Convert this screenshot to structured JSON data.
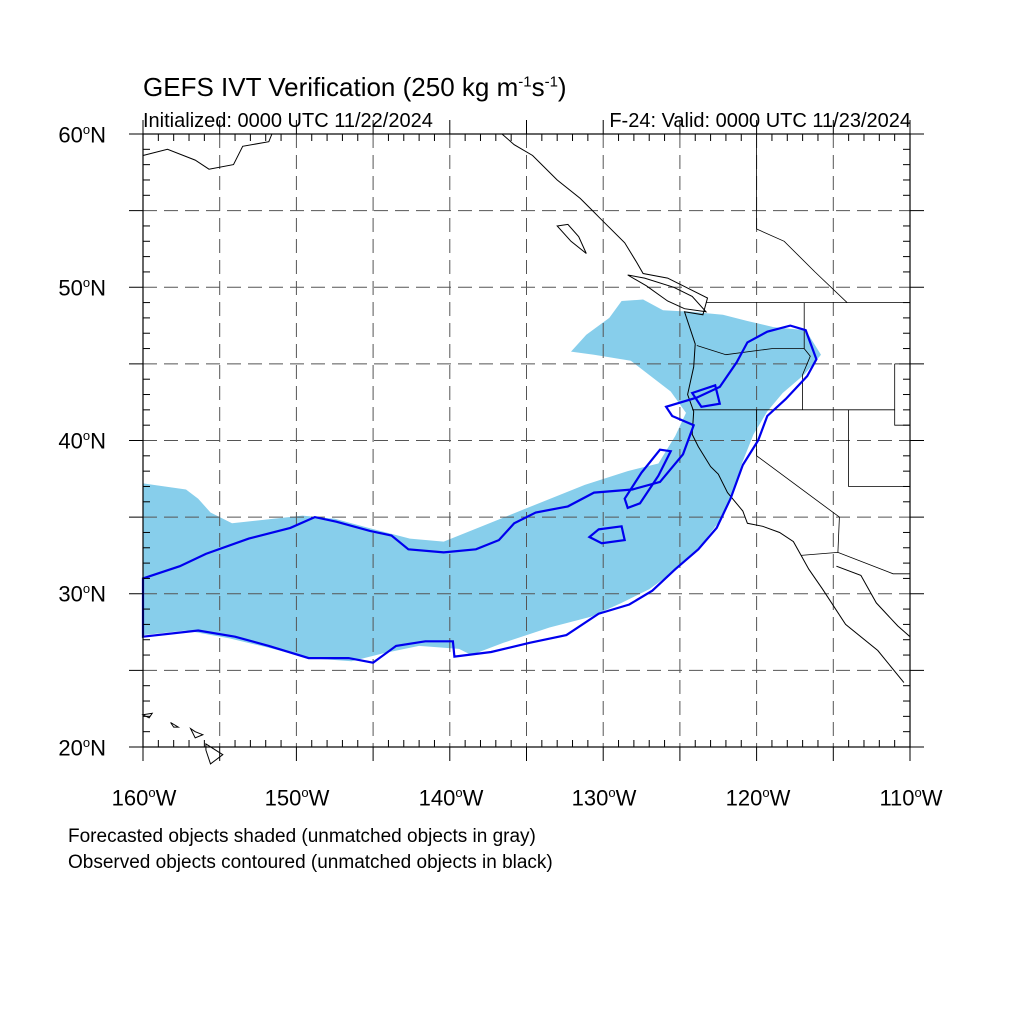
{
  "title": {
    "text": "GEFS IVT Verification (250 kg m",
    "exp1": "-1",
    "mid": "s",
    "exp2": "-1",
    "end": ")"
  },
  "subtitle": {
    "initialized": "Initialized: 0000 UTC 11/22/2024",
    "valid": "F-24: Valid: 0000 UTC 11/23/2024"
  },
  "latitude_labels": [
    {
      "deg": "60",
      "suffix": "N"
    },
    {
      "deg": "50",
      "suffix": "N"
    },
    {
      "deg": "40",
      "suffix": "N"
    },
    {
      "deg": "30",
      "suffix": "N"
    },
    {
      "deg": "20",
      "suffix": "N"
    }
  ],
  "longitude_labels": [
    {
      "deg": "160",
      "suffix": "W"
    },
    {
      "deg": "150",
      "suffix": "W"
    },
    {
      "deg": "140",
      "suffix": "W"
    },
    {
      "deg": "130",
      "suffix": "W"
    },
    {
      "deg": "120",
      "suffix": "W"
    },
    {
      "deg": "110",
      "suffix": "W"
    }
  ],
  "notes": {
    "forecast": "Forecasted objects shaded (unmatched objects in gray)",
    "observed": "Observed objects contoured (unmatched objects in black)"
  },
  "map": {
    "lon_range": [
      -160,
      -110
    ],
    "lat_range": [
      20,
      60
    ],
    "grid_lons": [
      -155,
      -150,
      -145,
      -140,
      -135,
      -130,
      -125,
      -120,
      -115
    ],
    "grid_lats": [
      25,
      30,
      35,
      40,
      45,
      50,
      55
    ],
    "forecast_fill_color": "#87ceeb",
    "observed_contour_color": "#0000ee",
    "coastline_color": "#000000"
  },
  "forecast_object": [
    [
      -160,
      37.2
    ],
    [
      -157.2,
      36.8
    ],
    [
      -156.4,
      36.2
    ],
    [
      -155.6,
      35.3
    ],
    [
      -154.2,
      34.6
    ],
    [
      -149.6,
      35.1
    ],
    [
      -147.5,
      34.9
    ],
    [
      -145.3,
      34.3
    ],
    [
      -142.6,
      33.6
    ],
    [
      -140.4,
      33.4
    ],
    [
      -137.9,
      34.4
    ],
    [
      -135.2,
      35.5
    ],
    [
      -131.2,
      37.1
    ],
    [
      -128.4,
      38.0
    ],
    [
      -126.4,
      38.5
    ],
    [
      -125.3,
      40.3
    ],
    [
      -124.6,
      41.8
    ],
    [
      -125.6,
      43.2
    ],
    [
      -128.2,
      45.2
    ],
    [
      -130.6,
      45.6
    ],
    [
      -132.1,
      45.8
    ],
    [
      -131.1,
      46.9
    ],
    [
      -129.6,
      48.0
    ],
    [
      -128.8,
      49.1
    ],
    [
      -127.4,
      49.2
    ],
    [
      -126.1,
      48.5
    ],
    [
      -124.3,
      48.4
    ],
    [
      -122.2,
      48.2
    ],
    [
      -120.6,
      47.8
    ],
    [
      -118.9,
      47.4
    ],
    [
      -116.8,
      47.2
    ],
    [
      -115.8,
      45.6
    ],
    [
      -116.9,
      44.3
    ],
    [
      -118.3,
      43.1
    ],
    [
      -119.3,
      41.9
    ],
    [
      -120.2,
      40.4
    ],
    [
      -121.0,
      38.4
    ],
    [
      -121.6,
      36.3
    ],
    [
      -122.3,
      34.9
    ],
    [
      -123.6,
      33.2
    ],
    [
      -125.2,
      31.6
    ],
    [
      -127.0,
      30.3
    ],
    [
      -128.8,
      29.4
    ],
    [
      -130.8,
      28.5
    ],
    [
      -133.5,
      27.8
    ],
    [
      -136.5,
      26.8
    ],
    [
      -138.6,
      26.0
    ],
    [
      -139.4,
      26.4
    ],
    [
      -142.0,
      26.6
    ],
    [
      -144.4,
      26.1
    ],
    [
      -146.4,
      25.6
    ],
    [
      -149.2,
      25.8
    ],
    [
      -151.9,
      26.5
    ],
    [
      -154.4,
      27.1
    ],
    [
      -157.2,
      27.6
    ],
    [
      -160,
      27.3
    ]
  ],
  "observed_object": [
    [
      -160,
      31.0
    ],
    [
      -157.6,
      31.8
    ],
    [
      -155.9,
      32.6
    ],
    [
      -153.1,
      33.6
    ],
    [
      -150.4,
      34.3
    ],
    [
      -148.8,
      35.0
    ],
    [
      -147.4,
      34.7
    ],
    [
      -145.2,
      34.1
    ],
    [
      -143.8,
      33.8
    ],
    [
      -142.7,
      32.9
    ],
    [
      -140.4,
      32.7
    ],
    [
      -138.3,
      32.9
    ],
    [
      -136.8,
      33.5
    ],
    [
      -135.8,
      34.6
    ],
    [
      -134.4,
      35.3
    ],
    [
      -132.3,
      35.7
    ],
    [
      -130.6,
      36.6
    ],
    [
      -128.1,
      36.8
    ],
    [
      -126.3,
      37.3
    ],
    [
      -124.8,
      39.1
    ],
    [
      -124.1,
      41.0
    ],
    [
      -125.5,
      41.6
    ],
    [
      -125.9,
      42.2
    ],
    [
      -123.9,
      42.8
    ],
    [
      -122.4,
      43.5
    ],
    [
      -121.3,
      45.1
    ],
    [
      -120.6,
      46.4
    ],
    [
      -119.3,
      47.1
    ],
    [
      -117.8,
      47.5
    ],
    [
      -116.8,
      47.2
    ],
    [
      -116.1,
      45.3
    ],
    [
      -116.7,
      44.2
    ],
    [
      -118.1,
      42.7
    ],
    [
      -119.3,
      41.6
    ],
    [
      -119.9,
      40.0
    ],
    [
      -120.9,
      38.4
    ],
    [
      -121.7,
      36.2
    ],
    [
      -122.6,
      34.3
    ],
    [
      -123.8,
      32.9
    ],
    [
      -125.3,
      31.6
    ],
    [
      -126.8,
      30.2
    ],
    [
      -128.3,
      29.3
    ],
    [
      -130.3,
      28.7
    ],
    [
      -132.4,
      27.3
    ],
    [
      -134.8,
      26.8
    ],
    [
      -137.3,
      26.2
    ],
    [
      -139.7,
      25.9
    ],
    [
      -139.8,
      26.9
    ],
    [
      -141.6,
      26.9
    ],
    [
      -143.5,
      26.6
    ],
    [
      -145.0,
      25.5
    ],
    [
      -146.6,
      25.8
    ],
    [
      -149.2,
      25.8
    ],
    [
      -151.8,
      26.6
    ],
    [
      -154.0,
      27.2
    ],
    [
      -156.4,
      27.6
    ],
    [
      -160,
      27.2
    ]
  ],
  "observed_small_1": [
    [
      -130.3,
      34.2
    ],
    [
      -128.8,
      34.4
    ],
    [
      -128.6,
      33.5
    ],
    [
      -130.1,
      33.3
    ],
    [
      -130.9,
      33.7
    ]
  ],
  "observed_small_2": [
    [
      -128.6,
      36.2
    ],
    [
      -127.5,
      37.9
    ],
    [
      -126.3,
      39.4
    ],
    [
      -125.6,
      39.3
    ],
    [
      -126.4,
      37.7
    ],
    [
      -127.6,
      35.9
    ],
    [
      -128.4,
      35.6
    ]
  ],
  "observed_small_3": [
    [
      -124.2,
      43.1
    ],
    [
      -122.7,
      43.6
    ],
    [
      -122.4,
      42.4
    ],
    [
      -123.6,
      42.2
    ]
  ],
  "coastline": [
    [
      -117.1,
      32.5
    ],
    [
      -117.6,
      33.4
    ],
    [
      -118.5,
      34.0
    ],
    [
      -119.6,
      34.4
    ],
    [
      -120.6,
      34.6
    ],
    [
      -120.9,
      35.4
    ],
    [
      -121.9,
      36.6
    ],
    [
      -122.5,
      37.8
    ],
    [
      -123.0,
      38.3
    ],
    [
      -123.8,
      39.6
    ],
    [
      -124.2,
      40.4
    ],
    [
      -124.1,
      41.9
    ],
    [
      -124.5,
      43.0
    ],
    [
      -124.1,
      44.8
    ],
    [
      -124.0,
      46.3
    ],
    [
      -124.7,
      48.4
    ],
    [
      -123.5,
      48.2
    ],
    [
      -123.2,
      49.3
    ],
    [
      -124.4,
      49.9
    ],
    [
      -125.8,
      50.6
    ],
    [
      -127.4,
      50.9
    ],
    [
      -127.8,
      51.6
    ],
    [
      -128.6,
      52.9
    ],
    [
      -130.2,
      54.5
    ],
    [
      -130.7,
      55.0
    ],
    [
      -131.5,
      55.8
    ],
    [
      -133.0,
      57.0
    ],
    [
      -134.6,
      58.6
    ],
    [
      -135.8,
      59.3
    ],
    [
      -136.6,
      60.0
    ]
  ],
  "coastline_mexico": [
    [
      -117.1,
      32.5
    ],
    [
      -116.6,
      31.6
    ],
    [
      -115.7,
      30.3
    ],
    [
      -114.2,
      28.0
    ],
    [
      -112.1,
      26.3
    ],
    [
      -110.4,
      24.2
    ]
  ],
  "coastline_gulf": [
    [
      -114.8,
      31.8
    ],
    [
      -113.2,
      31.2
    ],
    [
      -112.2,
      29.4
    ],
    [
      -110.8,
      27.9
    ],
    [
      -110,
      27.2
    ]
  ],
  "coastline_alaska": [
    [
      -160,
      58.6
    ],
    [
      -158.4,
      59.0
    ],
    [
      -156.6,
      58.3
    ],
    [
      -155.7,
      57.7
    ],
    [
      -154.1,
      58.0
    ],
    [
      -153.5,
      59.2
    ],
    [
      -151.8,
      59.5
    ],
    [
      -151.6,
      60.0
    ]
  ],
  "vancouver_island": [
    [
      -123.3,
      48.4
    ],
    [
      -124.7,
      48.6
    ],
    [
      -125.8,
      49.1
    ],
    [
      -127.2,
      50.1
    ],
    [
      -128.4,
      50.8
    ],
    [
      -127.3,
      50.6
    ],
    [
      -125.4,
      50.0
    ],
    [
      -124.2,
      49.4
    ],
    [
      -123.3,
      48.4
    ]
  ],
  "haida_gwaii": [
    [
      -131.1,
      52.2
    ],
    [
      -132.1,
      53.0
    ],
    [
      -133.0,
      54.0
    ],
    [
      -132.3,
      54.1
    ],
    [
      -131.6,
      53.3
    ],
    [
      -131.1,
      52.2
    ]
  ],
  "hawaii": [
    [
      [
        -160.0,
        22.1
      ],
      [
        -159.4,
        22.2
      ],
      [
        -159.6,
        21.9
      ]
    ],
    [
      [
        -158.2,
        21.6
      ],
      [
        -157.7,
        21.3
      ],
      [
        -158.0,
        21.3
      ]
    ],
    [
      [
        -156.9,
        21.2
      ],
      [
        -156.6,
        20.6
      ],
      [
        -156.1,
        20.8
      ],
      [
        -156.6,
        21.0
      ]
    ],
    [
      [
        -155.9,
        20.2
      ],
      [
        -154.8,
        19.5
      ],
      [
        -155.6,
        18.9
      ],
      [
        -155.9,
        19.8
      ]
    ]
  ],
  "borders": [
    [
      [
        -123.3,
        49.0
      ],
      [
        -110,
        49.0
      ]
    ],
    [
      [
        -124.2,
        42.0
      ],
      [
        -111,
        42.0
      ]
    ],
    [
      [
        -120.0,
        42.0
      ],
      [
        -120.0,
        39.0
      ],
      [
        -114.6,
        35.0
      ],
      [
        -114.7,
        32.7
      ]
    ],
    [
      [
        -117.1,
        32.5
      ],
      [
        -114.7,
        32.7
      ],
      [
        -111.1,
        31.3
      ],
      [
        -110,
        31.3
      ]
    ],
    [
      [
        -123.9,
        46.2
      ],
      [
        -122.0,
        45.6
      ],
      [
        -119.0,
        46.0
      ],
      [
        -116.9,
        46.0
      ]
    ],
    [
      [
        -116.9,
        49.0
      ],
      [
        -116.9,
        46.0
      ],
      [
        -116.5,
        45.5
      ],
      [
        -117.0,
        44.3
      ],
      [
        -117.0,
        42.0
      ]
    ],
    [
      [
        -120.0,
        60.0
      ],
      [
        -120.0,
        53.8
      ],
      [
        -118.2,
        53.0
      ],
      [
        -116.2,
        51.0
      ],
      [
        -114.1,
        49.0
      ]
    ],
    [
      [
        -111.0,
        45.0
      ],
      [
        -110,
        45.0
      ]
    ],
    [
      [
        -111.0,
        45.0
      ],
      [
        -111.0,
        41.0
      ],
      [
        -110,
        41.0
      ]
    ],
    [
      [
        -114.0,
        42.0
      ],
      [
        -114.0,
        37.0
      ],
      [
        -110,
        37.0
      ]
    ]
  ]
}
